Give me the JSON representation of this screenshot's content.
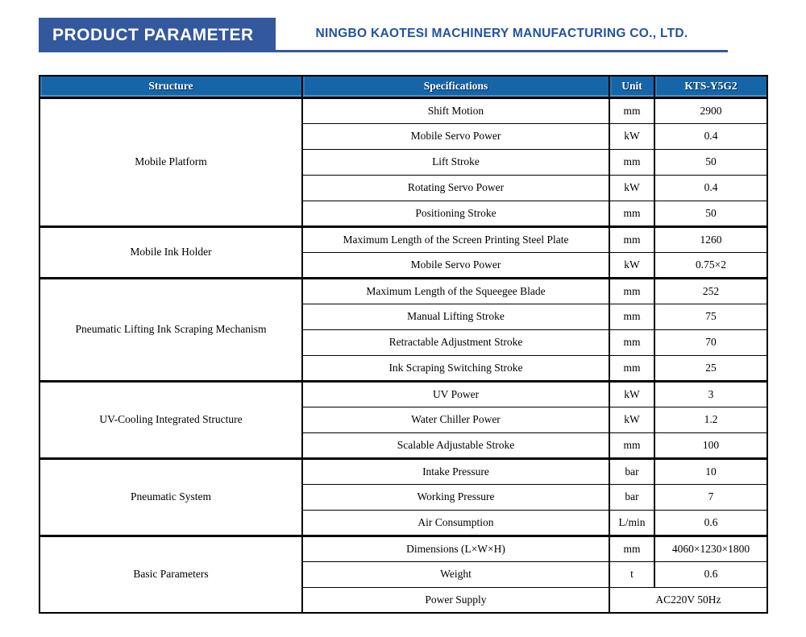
{
  "banner": {
    "title": "PRODUCT PARAMETER",
    "company": "NINGBO KAOTESI MACHINERY MANUFACTURING CO., LTD."
  },
  "colors": {
    "accent": "#33589d",
    "table_header_bg": "#1565a8",
    "table_border": "#000000",
    "company_text": "#2153a3"
  },
  "table": {
    "columns": [
      "Structure",
      "Specifications",
      "Unit",
      "KTS-Y5G2"
    ],
    "groups": [
      {
        "structure": "Mobile Platform",
        "rows": [
          {
            "spec": "Shift Motion",
            "unit": "mm",
            "value": "2900"
          },
          {
            "spec": "Mobile Servo Power",
            "unit": "kW",
            "value": "0.4"
          },
          {
            "spec": "Lift Stroke",
            "unit": "mm",
            "value": "50"
          },
          {
            "spec": "Rotating Servo Power",
            "unit": "kW",
            "value": "0.4"
          },
          {
            "spec": "Positioning Stroke",
            "unit": "mm",
            "value": "50"
          }
        ]
      },
      {
        "structure": "Mobile Ink Holder",
        "rows": [
          {
            "spec": "Maximum Length of the Screen Printing Steel Plate",
            "unit": "mm",
            "value": "1260"
          },
          {
            "spec": "Mobile Servo Power",
            "unit": "kW",
            "value": "0.75×2"
          }
        ]
      },
      {
        "structure": "Pneumatic Lifting Ink Scraping Mechanism",
        "rows": [
          {
            "spec": "Maximum Length of the Squeegee Blade",
            "unit": "mm",
            "value": "252"
          },
          {
            "spec": "Manual Lifting Stroke",
            "unit": "mm",
            "value": "75"
          },
          {
            "spec": "Retractable Adjustment Stroke",
            "unit": "mm",
            "value": "70"
          },
          {
            "spec": "Ink Scraping Switching Stroke",
            "unit": "mm",
            "value": "25"
          }
        ]
      },
      {
        "structure": "UV-Cooling Integrated Structure",
        "rows": [
          {
            "spec": "UV Power",
            "unit": "kW",
            "value": "3"
          },
          {
            "spec": "Water Chiller Power",
            "unit": "kW",
            "value": "1.2"
          },
          {
            "spec": "Scalable Adjustable Stroke",
            "unit": "mm",
            "value": "100"
          }
        ]
      },
      {
        "structure": "Pneumatic System",
        "rows": [
          {
            "spec": "Intake Pressure",
            "unit": "bar",
            "value": "10"
          },
          {
            "spec": "Working Pressure",
            "unit": "bar",
            "value": "7"
          },
          {
            "spec": "Air Consumption",
            "unit": "L/min",
            "value": "0.6"
          }
        ]
      },
      {
        "structure": "Basic Parameters",
        "rows": [
          {
            "spec": "Dimensions (L×W×H)",
            "unit": "mm",
            "value": "4060×1230×1800"
          },
          {
            "spec": "Weight",
            "unit": "t",
            "value": "0.6"
          },
          {
            "spec": "Power Supply",
            "merged_value": "AC220V 50Hz"
          }
        ]
      }
    ]
  }
}
